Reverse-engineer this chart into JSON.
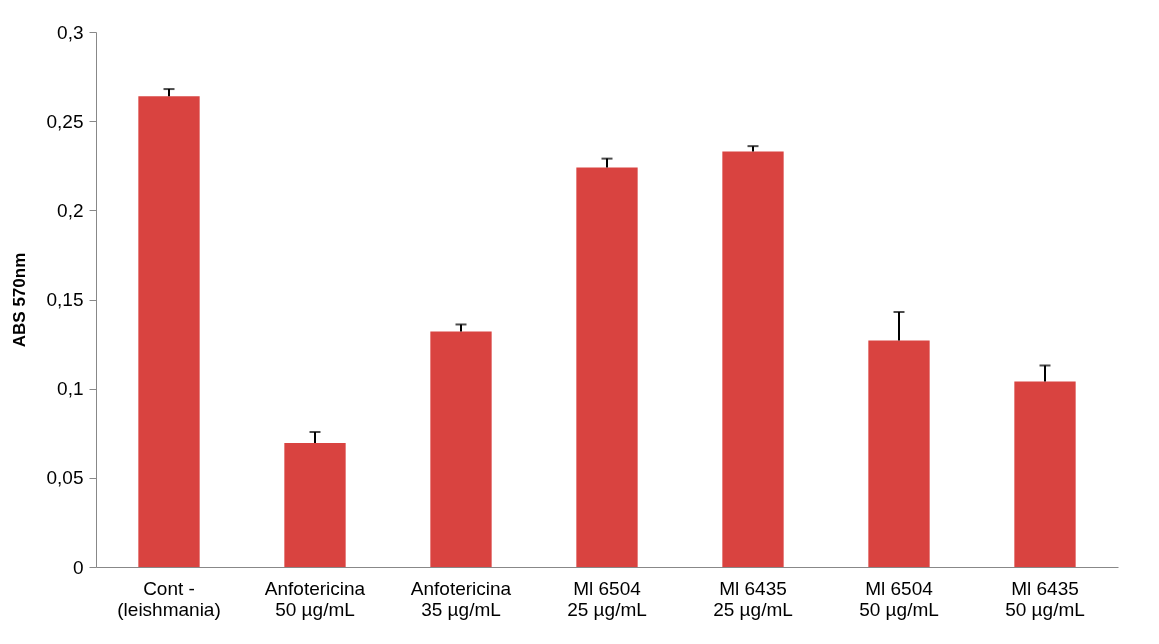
{
  "chart_data": {
    "type": "bar",
    "ylabel": "ABS 570nm",
    "categories": [
      "Cont -\n(leishmania)",
      "Anfotericina\n50 µg/mL",
      "Anfotericina\n35 µg/mL",
      "Ml 6504\n25 µg/mL",
      "Ml 6435\n25 µg/mL",
      "Ml 6504\n50 µg/mL",
      "Ml 6435\n50 µg/mL"
    ],
    "values": [
      0.264,
      0.0695,
      0.132,
      0.224,
      0.233,
      0.127,
      0.104
    ],
    "errors": [
      [
        0.264,
        0.268
      ],
      [
        0.0695,
        0.0757
      ],
      [
        0.132,
        0.136
      ],
      [
        0.224,
        0.229
      ],
      [
        0.233,
        0.236
      ],
      [
        0.127,
        0.143
      ],
      [
        0.104,
        0.113
      ]
    ],
    "color": "#d94340",
    "ylim": [
      0,
      0.3
    ],
    "yticks": [
      {
        "value": 0,
        "label": "0"
      },
      {
        "value": 0.05,
        "label": "0,05"
      },
      {
        "value": 0.1,
        "label": "0,1"
      },
      {
        "value": 0.15,
        "label": "0,15"
      },
      {
        "value": 0.2,
        "label": "0,2"
      },
      {
        "value": 0.25,
        "label": "0,25"
      },
      {
        "value": 0.3,
        "label": "0,3"
      }
    ],
    "grid": false
  }
}
